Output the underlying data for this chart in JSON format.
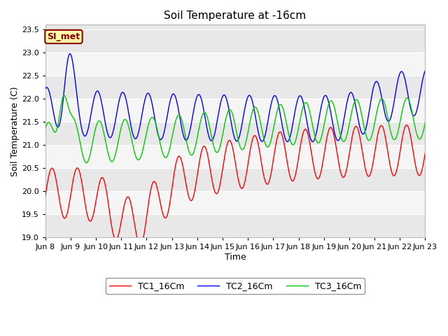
{
  "title": "Soil Temperature at -16cm",
  "xlabel": "Time",
  "ylabel": "Soil Temperature (C)",
  "ylim": [
    19.0,
    23.6
  ],
  "yticks": [
    19.0,
    19.5,
    20.0,
    20.5,
    21.0,
    21.5,
    22.0,
    22.5,
    23.0,
    23.5
  ],
  "xtick_labels": [
    "Jun 8",
    "Jun 9",
    "Jun 10",
    "Jun 11",
    "Jun 12",
    "Jun 13",
    "Jun 14",
    "Jun 15",
    "Jun 16",
    "Jun 17",
    "Jun 18",
    "Jun 19",
    "Jun 20",
    "Jun 21",
    "Jun 22",
    "Jun 23"
  ],
  "legend_labels": [
    "TC1_16Cm",
    "TC2_16Cm",
    "TC3_16Cm"
  ],
  "line_colors": [
    "#ff0000",
    "#0000ff",
    "#00cc00"
  ],
  "annotation_text": "SI_met",
  "annotation_bg": "#ffffaa",
  "annotation_border": "#8B0000",
  "background_outer": "#ffffff",
  "band_colors": [
    "#e8e8e8",
    "#f5f5f5"
  ],
  "title_fontsize": 11,
  "axis_fontsize": 9,
  "tick_fontsize": 8,
  "legend_fontsize": 9,
  "figwidth": 6.4,
  "figheight": 4.8,
  "dpi": 100
}
